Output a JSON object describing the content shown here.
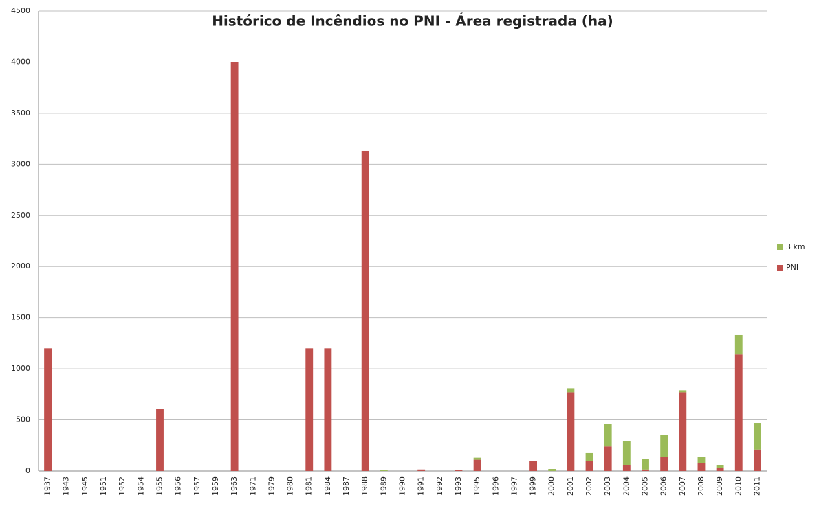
{
  "chart_data": {
    "type": "stacked_bar",
    "title": "Histórico de Incêndios no PNI - Área registrada (ha)",
    "categories": [
      "1937",
      "1943",
      "1945",
      "1951",
      "1952",
      "1954",
      "1955",
      "1956",
      "1957",
      "1959",
      "1963",
      "1971",
      "1979",
      "1980",
      "1981",
      "1984",
      "1987",
      "1988",
      "1989",
      "1990",
      "1991",
      "1992",
      "1993",
      "1995",
      "1996",
      "1997",
      "1999",
      "2000",
      "2001",
      "2002",
      "2003",
      "2004",
      "2005",
      "2006",
      "2007",
      "2008",
      "2009",
      "2010",
      "2011"
    ],
    "series": [
      {
        "name": "PNI",
        "color": "#c0504d",
        "values": [
          1200,
          0,
          0,
          0,
          0,
          0,
          610,
          0,
          0,
          0,
          4000,
          0,
          0,
          0,
          1200,
          1200,
          0,
          3130,
          0,
          0,
          15,
          0,
          10,
          110,
          0,
          0,
          100,
          0,
          770,
          100,
          240,
          55,
          15,
          140,
          770,
          80,
          30,
          1140,
          210
        ]
      },
      {
        "name": "3 km",
        "color": "#9bbb59",
        "values": [
          0,
          0,
          0,
          0,
          0,
          0,
          0,
          0,
          0,
          0,
          0,
          0,
          0,
          0,
          0,
          0,
          0,
          0,
          10,
          0,
          0,
          0,
          0,
          20,
          0,
          0,
          0,
          20,
          40,
          75,
          220,
          240,
          100,
          215,
          20,
          55,
          30,
          190,
          260
        ]
      }
    ],
    "ylim": [
      0,
      4500
    ],
    "yticks": [
      0,
      500,
      1000,
      1500,
      2000,
      2500,
      3000,
      3500,
      4000,
      4500
    ],
    "grid": true,
    "legend": "right"
  }
}
